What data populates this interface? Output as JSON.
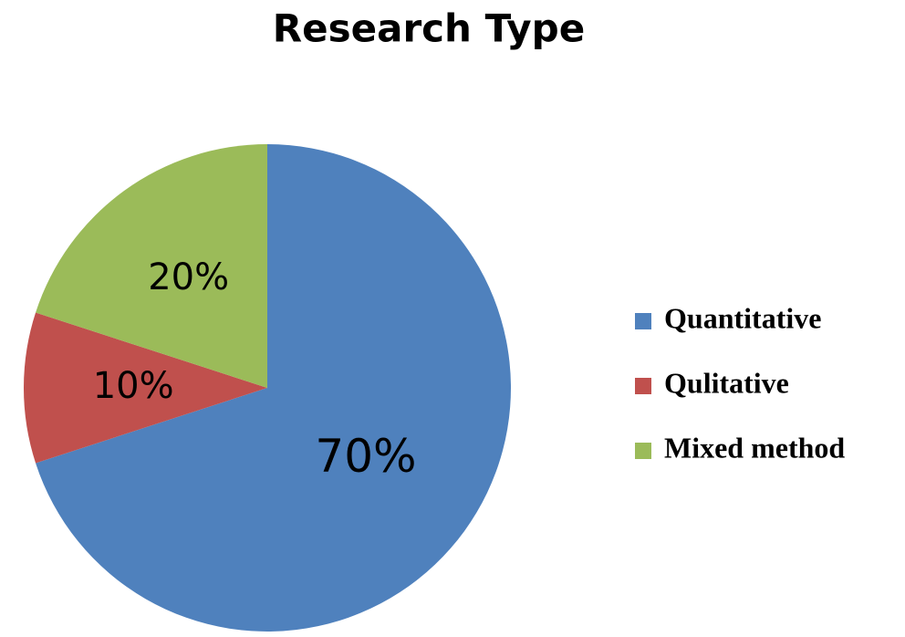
{
  "chart_data": {
    "type": "pie",
    "title": "Research Type",
    "categories": [
      "Quantitative",
      "Qulitative",
      "Mixed method"
    ],
    "values": [
      70,
      10,
      20
    ],
    "value_labels": [
      "70%",
      "10%",
      "20%"
    ],
    "colors": [
      "#4f81bd",
      "#c0504d",
      "#9bbb59"
    ],
    "legend": "right"
  }
}
